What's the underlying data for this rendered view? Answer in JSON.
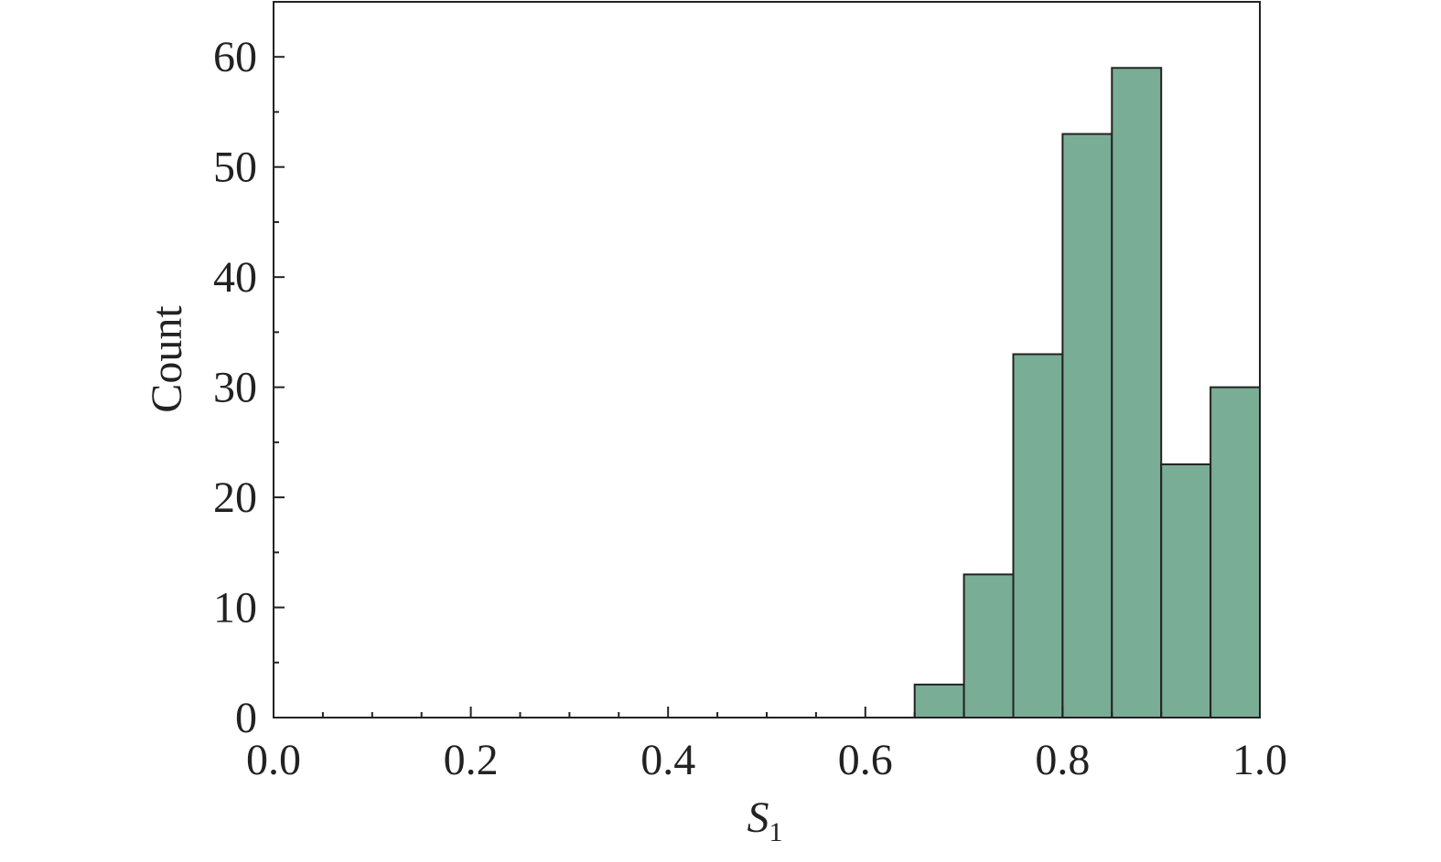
{
  "chart_data": {
    "type": "histogram",
    "xlabel": {
      "symbol": "S",
      "subscript": "1"
    },
    "ylabel": "Count",
    "bins": [
      0.65,
      0.7,
      0.75,
      0.8,
      0.85,
      0.9,
      0.95,
      1.0
    ],
    "values": [
      3,
      13,
      33,
      53,
      59,
      23,
      30
    ],
    "color": "#7aad96",
    "xlim": [
      0,
      1
    ],
    "ylim": [
      0,
      65
    ],
    "xticks": [
      {
        "value": 0,
        "label": "0.0"
      },
      0.2,
      0.4,
      0.6,
      0.8,
      {
        "value": 1,
        "label": "1.0"
      }
    ],
    "yticks": [
      0,
      10,
      20,
      30,
      40,
      50,
      60
    ]
  }
}
